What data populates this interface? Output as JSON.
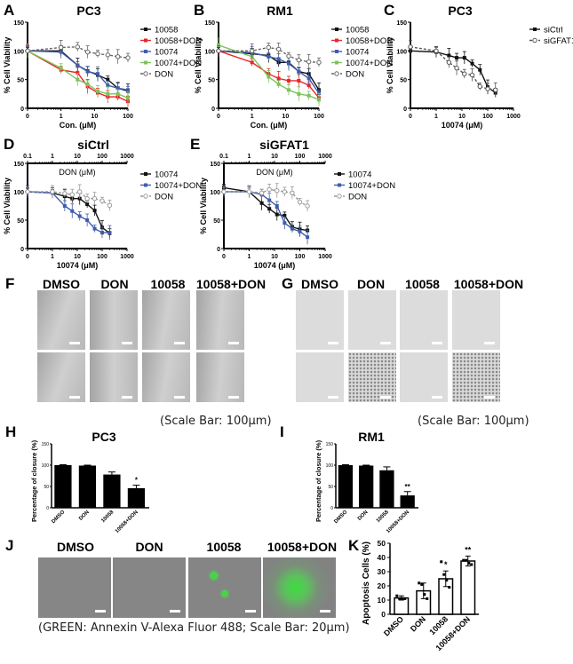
{
  "figure": {
    "panels": {
      "A": {
        "letter": "A",
        "title": "PC3"
      },
      "B": {
        "letter": "B",
        "title": "RM1"
      },
      "C": {
        "letter": "C",
        "title": "PC3"
      },
      "D": {
        "letter": "D",
        "title": "siCtrl"
      },
      "E": {
        "letter": "E",
        "title": "siGFAT1"
      },
      "F": {
        "letter": "F",
        "columns": [
          "DMSO",
          "DON",
          "10058",
          "10058+DON"
        ],
        "caption": "(Scale Bar: 100μm)"
      },
      "G": {
        "letter": "G",
        "columns": [
          "DMSO",
          "DON",
          "10058",
          "10058+DON"
        ],
        "caption": "(Scale Bar: 100μm)"
      },
      "H": {
        "letter": "H",
        "title": "PC3"
      },
      "I": {
        "letter": "I",
        "title": "RM1"
      },
      "J": {
        "letter": "J",
        "columns": [
          "DMSO",
          "DON",
          "10058",
          "10058+DON"
        ],
        "caption": "(GREEN: Annexin V-Alexa Fluor 488; Scale Bar: 20μm)"
      },
      "K": {
        "letter": "K"
      }
    }
  },
  "colors": {
    "black": "#111111",
    "red": "#e8262a",
    "blue": "#3f5dab",
    "green": "#7dc35b",
    "gray": "#9a9a9a",
    "fluor_green": "#3ddc3d"
  },
  "chart_data": [
    {
      "id": "A",
      "type": "line",
      "title": "PC3",
      "xlabel": "Con. (μM)",
      "ylabel": "% Cell Viability",
      "xscale": "log",
      "xticks": [
        "0",
        "1",
        "10",
        "100"
      ],
      "yticks": [
        0,
        50,
        100,
        150
      ],
      "ylim": [
        0,
        150
      ],
      "x": [
        0,
        1,
        3.125,
        6.25,
        12.5,
        25,
        50,
        100
      ],
      "series": [
        {
          "name": "10058",
          "color": "#111111",
          "values": [
            100,
            100,
            75,
            65,
            58,
            50,
            35,
            30
          ]
        },
        {
          "name": "10058+DON",
          "color": "#e8262a",
          "values": [
            100,
            67,
            62,
            38,
            27,
            20,
            20,
            12
          ]
        },
        {
          "name": "10074",
          "color": "#3f5dab",
          "values": [
            100,
            98,
            75,
            64,
            60,
            40,
            35,
            32
          ]
        },
        {
          "name": "10074+DON",
          "color": "#7dc35b",
          "values": [
            100,
            70,
            50,
            42,
            30,
            25,
            25,
            18
          ]
        },
        {
          "name": "DON",
          "color": "#666666",
          "open": true,
          "dashed": true,
          "values": [
            100,
            106,
            107,
            98,
            95,
            93,
            90,
            88
          ]
        }
      ]
    },
    {
      "id": "B",
      "type": "line",
      "title": "RM1",
      "xlabel": "Con. (μM)",
      "ylabel": "% Cell Viability",
      "xscale": "log",
      "xticks": [
        "0",
        "1",
        "10",
        "100"
      ],
      "yticks": [
        0,
        50,
        100,
        150
      ],
      "ylim": [
        0,
        150
      ],
      "x": [
        0,
        1,
        3.125,
        6.25,
        12.5,
        25,
        50,
        100
      ],
      "series": [
        {
          "name": "10058",
          "color": "#111111",
          "values": [
            100,
            95,
            92,
            80,
            80,
            64,
            60,
            32
          ]
        },
        {
          "name": "10058+DON",
          "color": "#e8262a",
          "values": [
            100,
            80,
            60,
            52,
            48,
            48,
            40,
            18
          ]
        },
        {
          "name": "10074",
          "color": "#3f5dab",
          "values": [
            100,
            97,
            90,
            86,
            78,
            64,
            52,
            26
          ]
        },
        {
          "name": "10074+DON",
          "color": "#7dc35b",
          "values": [
            110,
            90,
            55,
            42,
            32,
            25,
            22,
            15
          ]
        },
        {
          "name": "DON",
          "color": "#666666",
          "open": true,
          "dashed": true,
          "values": [
            100,
            100,
            106,
            103,
            91,
            84,
            81,
            80
          ]
        }
      ]
    },
    {
      "id": "C",
      "type": "line",
      "title": "PC3",
      "xlabel": "10074 (μM)",
      "ylabel": "% Cell Viability",
      "xscale": "log",
      "xticks": [
        "0",
        "1",
        "10",
        "100",
        "1000"
      ],
      "yticks": [
        0,
        50,
        100,
        150
      ],
      "ylim": [
        0,
        150
      ],
      "x": [
        0,
        1,
        3.125,
        6.25,
        12.5,
        25,
        50,
        100,
        200
      ],
      "series": [
        {
          "name": "siCtrl",
          "color": "#111111",
          "values": [
            100,
            98,
            92,
            88,
            88,
            78,
            67,
            37,
            27
          ]
        },
        {
          "name": "siGFAT1",
          "color": "#555555",
          "open": true,
          "dashed": true,
          "values": [
            107,
            100,
            80,
            70,
            60,
            58,
            38,
            34,
            32
          ]
        }
      ]
    },
    {
      "id": "D",
      "type": "line",
      "title": "siCtrl",
      "xlabel": "10074 (μM)",
      "xlabel_top": "DON (μM)",
      "ylabel": "% Cell Viability",
      "xscale": "log",
      "xticks": [
        "0",
        "1",
        "10",
        "100",
        "1000"
      ],
      "xticks_top": [
        "0.1",
        "1",
        "10",
        "100",
        "1000"
      ],
      "yticks": [
        0,
        50,
        100,
        150
      ],
      "ylim": [
        0,
        150
      ],
      "x": [
        0,
        1,
        3.125,
        6.25,
        12.5,
        25,
        50,
        100,
        200
      ],
      "series": [
        {
          "name": "10074",
          "color": "#111111",
          "values": [
            100,
            98,
            92,
            88,
            88,
            78,
            67,
            37,
            27
          ]
        },
        {
          "name": "10074+DON",
          "color": "#3f5dab",
          "values": [
            100,
            98,
            75,
            66,
            57,
            50,
            35,
            28,
            28
          ]
        },
        {
          "name": "DON",
          "color": "#9a9a9a",
          "open": true,
          "dashed": true,
          "values": [
            100,
            100,
            97,
            95,
            100,
            88,
            88,
            84,
            76
          ]
        }
      ]
    },
    {
      "id": "E",
      "type": "line",
      "title": "siGFAT1",
      "xlabel": "10074 (μM)",
      "xlabel_top": "DON (μM)",
      "ylabel": "% Cell Viability",
      "xscale": "log",
      "xticks": [
        "0",
        "1",
        "10",
        "100",
        "1000"
      ],
      "xticks_top": [
        "0.1",
        "1",
        "10",
        "100",
        "1000"
      ],
      "yticks": [
        0,
        50,
        100,
        150
      ],
      "ylim": [
        0,
        150
      ],
      "x": [
        0,
        1,
        3.125,
        6.25,
        12.5,
        25,
        50,
        100,
        200
      ],
      "series": [
        {
          "name": "10074",
          "color": "#111111",
          "values": [
            107,
            100,
            80,
            70,
            60,
            58,
            38,
            34,
            32
          ]
        },
        {
          "name": "10074+DON",
          "color": "#3f5dab",
          "values": [
            100,
            100,
            95,
            85,
            75,
            45,
            35,
            30,
            20
          ]
        },
        {
          "name": "DON",
          "color": "#9a9a9a",
          "open": true,
          "dashed": true,
          "values": [
            100,
            100,
            98,
            104,
            102,
            100,
            98,
            82,
            75
          ]
        }
      ]
    },
    {
      "id": "H",
      "type": "bar",
      "title": "PC3",
      "ylabel": "Percentage of closure (%)",
      "categories": [
        "DMSO",
        "DON",
        "10058",
        "10058+DON"
      ],
      "values": [
        100,
        99,
        78,
        46
      ],
      "errors": [
        1,
        1,
        6,
        7
      ],
      "annotations": [
        "",
        "",
        "",
        "*"
      ],
      "yticks": [
        0,
        50,
        100,
        150
      ],
      "ylim": [
        0,
        150
      ]
    },
    {
      "id": "I",
      "type": "bar",
      "title": "RM1",
      "ylabel": "Percentage of closure (%)",
      "categories": [
        "DMSO",
        "DON",
        "10058",
        "10058+DON"
      ],
      "values": [
        100,
        99,
        88,
        29
      ],
      "errors": [
        1,
        1,
        8,
        9
      ],
      "annotations": [
        "",
        "",
        "",
        "**"
      ],
      "yticks": [
        0,
        50,
        100,
        150
      ],
      "ylim": [
        0,
        150
      ]
    },
    {
      "id": "K",
      "type": "bar",
      "title": "",
      "ylabel": "Apoptosis Cells (%)",
      "categories": [
        "DMSO",
        "DON",
        "10058",
        "10058+DON"
      ],
      "values": [
        11.5,
        16.5,
        25,
        37.5
      ],
      "errors": [
        1.5,
        5.5,
        5.5,
        3.5
      ],
      "points": [
        [
          13,
          11,
          11,
          11
        ],
        [
          22,
          21,
          14,
          11
        ],
        [
          37,
          28,
          24,
          19
        ],
        [
          38,
          38,
          36,
          35
        ]
      ],
      "annotations": [
        "",
        "",
        "*",
        "**"
      ],
      "yticks": [
        0,
        10,
        20,
        30,
        40,
        50
      ],
      "ylim": [
        0,
        50
      ]
    }
  ]
}
